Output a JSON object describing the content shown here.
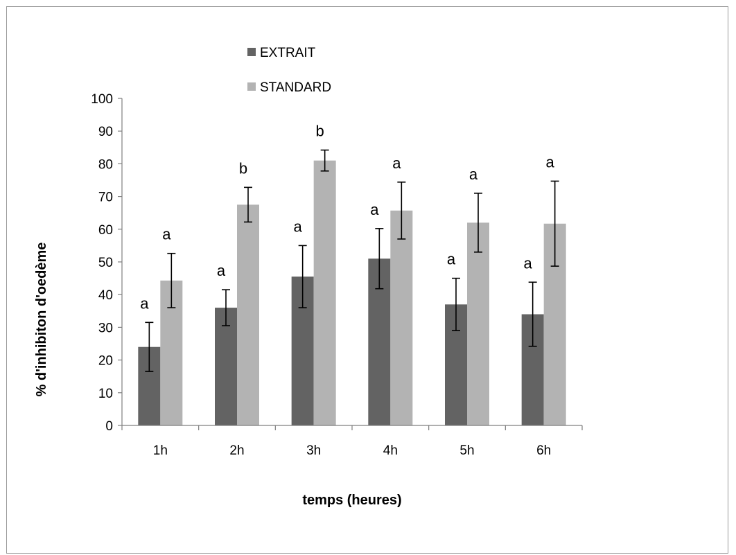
{
  "chart_data": {
    "type": "bar",
    "categories": [
      "1h",
      "2h",
      "3h",
      "4h",
      "5h",
      "6h"
    ],
    "series": [
      {
        "name": "EXTRAIT",
        "color": "#636363",
        "values": [
          24,
          36,
          45.5,
          51,
          37,
          34
        ],
        "errors": [
          7.5,
          5.5,
          9.5,
          9.2,
          8,
          9.8
        ],
        "sig": [
          "a",
          "a",
          "a",
          "a",
          "a",
          "a"
        ]
      },
      {
        "name": "STANDARD",
        "color": "#b3b3b3",
        "values": [
          44.3,
          67.5,
          81,
          65.7,
          62,
          61.7
        ],
        "errors": [
          8.3,
          5.3,
          3.2,
          8.7,
          9,
          13
        ],
        "sig": [
          "a",
          "b",
          "b",
          "a",
          "a",
          "a"
        ]
      }
    ],
    "ylim": [
      0,
      100
    ],
    "yticks": [
      "0",
      "10",
      "20",
      "30",
      "40",
      "50",
      "60",
      "70",
      "80",
      "90",
      "100"
    ],
    "xlabel": "temps (heures)",
    "ylabel": "% d'inhibiton d'oedème",
    "legend_position": "top",
    "grid": false
  }
}
